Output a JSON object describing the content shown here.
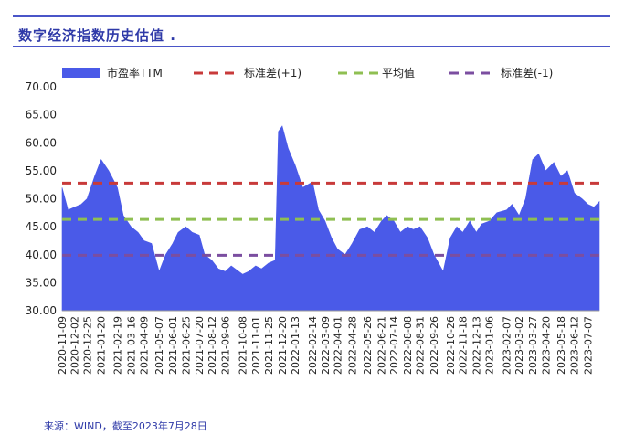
{
  "header": {
    "title": "数字经济指数历史估值",
    "title_suffix": "."
  },
  "footer": {
    "source": "来源：WIND，截至2023年7月28日"
  },
  "chart_data": {
    "type": "area",
    "title": "数字经济指数历史估值",
    "xlabel": "",
    "ylabel": "",
    "ylim": [
      30,
      70
    ],
    "yticks": [
      "30.00",
      "35.00",
      "40.00",
      "45.00",
      "50.00",
      "55.00",
      "60.00",
      "65.00",
      "70.00"
    ],
    "grid": false,
    "legend_position": "top",
    "x_ticks": [
      "2020-11-09",
      "2020-12-02",
      "2020-12-25",
      "2021-01-20",
      "2021-02-19",
      "2021-03-16",
      "2021-04-09",
      "2021-05-07",
      "2021-06-01",
      "2021-06-25",
      "2021-07-20",
      "2021-08-12",
      "2021-09-06",
      "2021-10-08",
      "2021-11-01",
      "2021-11-25",
      "2021-12-20",
      "2022-01-13",
      "2022-02-14",
      "2022-03-09",
      "2022-04-01",
      "2022-04-28",
      "2022-05-26",
      "2022-06-21",
      "2022-07-14",
      "2022-08-08",
      "2022-08-31",
      "2022-09-26",
      "2022-10-26",
      "2022-11-18",
      "2022-12-13",
      "2023-01-06",
      "2023-02-07",
      "2023-03-02",
      "2023-03-27",
      "2023-04-20",
      "2023-05-18",
      "2023-06-12",
      "2023-07-07"
    ],
    "series": [
      {
        "name": "市盈率TTM",
        "kind": "area",
        "color": "#4a5ae8",
        "x": [
          "2020-11-09",
          "2020-11-20",
          "2020-12-02",
          "2020-12-14",
          "2020-12-25",
          "2021-01-08",
          "2021-01-20",
          "2021-02-03",
          "2021-02-19",
          "2021-03-02",
          "2021-03-16",
          "2021-03-29",
          "2021-04-09",
          "2021-04-23",
          "2021-05-07",
          "2021-05-19",
          "2021-06-01",
          "2021-06-11",
          "2021-06-25",
          "2021-07-07",
          "2021-07-20",
          "2021-07-30",
          "2021-08-12",
          "2021-08-24",
          "2021-09-06",
          "2021-09-17",
          "2021-10-08",
          "2021-10-19",
          "2021-11-01",
          "2021-11-12",
          "2021-11-25",
          "2021-12-07",
          "2021-12-13",
          "2021-12-20",
          "2021-12-31",
          "2022-01-13",
          "2022-01-27",
          "2022-02-14",
          "2022-02-25",
          "2022-03-09",
          "2022-03-21",
          "2022-04-01",
          "2022-04-15",
          "2022-04-28",
          "2022-05-12",
          "2022-05-26",
          "2022-06-08",
          "2022-06-21",
          "2022-07-01",
          "2022-07-14",
          "2022-07-26",
          "2022-08-08",
          "2022-08-19",
          "2022-08-31",
          "2022-09-14",
          "2022-09-26",
          "2022-10-13",
          "2022-10-26",
          "2022-11-07",
          "2022-11-18",
          "2022-12-01",
          "2022-12-13",
          "2022-12-23",
          "2023-01-06",
          "2023-01-20",
          "2023-02-07",
          "2023-02-17",
          "2023-03-02",
          "2023-03-14",
          "2023-03-27",
          "2023-04-07",
          "2023-04-20",
          "2023-05-05",
          "2023-05-18",
          "2023-05-30",
          "2023-06-12",
          "2023-06-26",
          "2023-07-07",
          "2023-07-18",
          "2023-07-28"
        ],
        "values": [
          52.0,
          48.0,
          48.5,
          49.0,
          50.0,
          54.0,
          57.0,
          55.0,
          52.0,
          47.0,
          45.0,
          44.0,
          42.5,
          42.0,
          37.0,
          40.0,
          42.0,
          44.0,
          45.0,
          44.0,
          43.5,
          40.0,
          39.0,
          37.5,
          37.0,
          38.0,
          36.5,
          37.0,
          38.0,
          37.5,
          38.5,
          39.0,
          62.0,
          63.0,
          59.0,
          56.0,
          52.0,
          53.0,
          48.0,
          46.0,
          43.0,
          41.0,
          40.0,
          42.0,
          44.5,
          45.0,
          44.0,
          46.0,
          47.0,
          46.0,
          44.0,
          45.0,
          44.5,
          45.0,
          43.0,
          40.0,
          37.0,
          43.0,
          45.0,
          44.0,
          46.0,
          44.0,
          45.5,
          46.0,
          47.5,
          48.0,
          49.0,
          47.0,
          50.0,
          57.0,
          58.0,
          55.0,
          56.5,
          54.0,
          55.0,
          51.0,
          50.0,
          49.0,
          48.5,
          49.5
        ]
      },
      {
        "name": "标准差(+1)",
        "kind": "dashed",
        "color": "#c83a3a",
        "value": 52.8
      },
      {
        "name": "平均值",
        "kind": "dashed",
        "color": "#8fbf52",
        "value": 46.3
      },
      {
        "name": "标准差(-1)",
        "kind": "dashed",
        "color": "#7b4ea0",
        "value": 39.9
      }
    ]
  }
}
